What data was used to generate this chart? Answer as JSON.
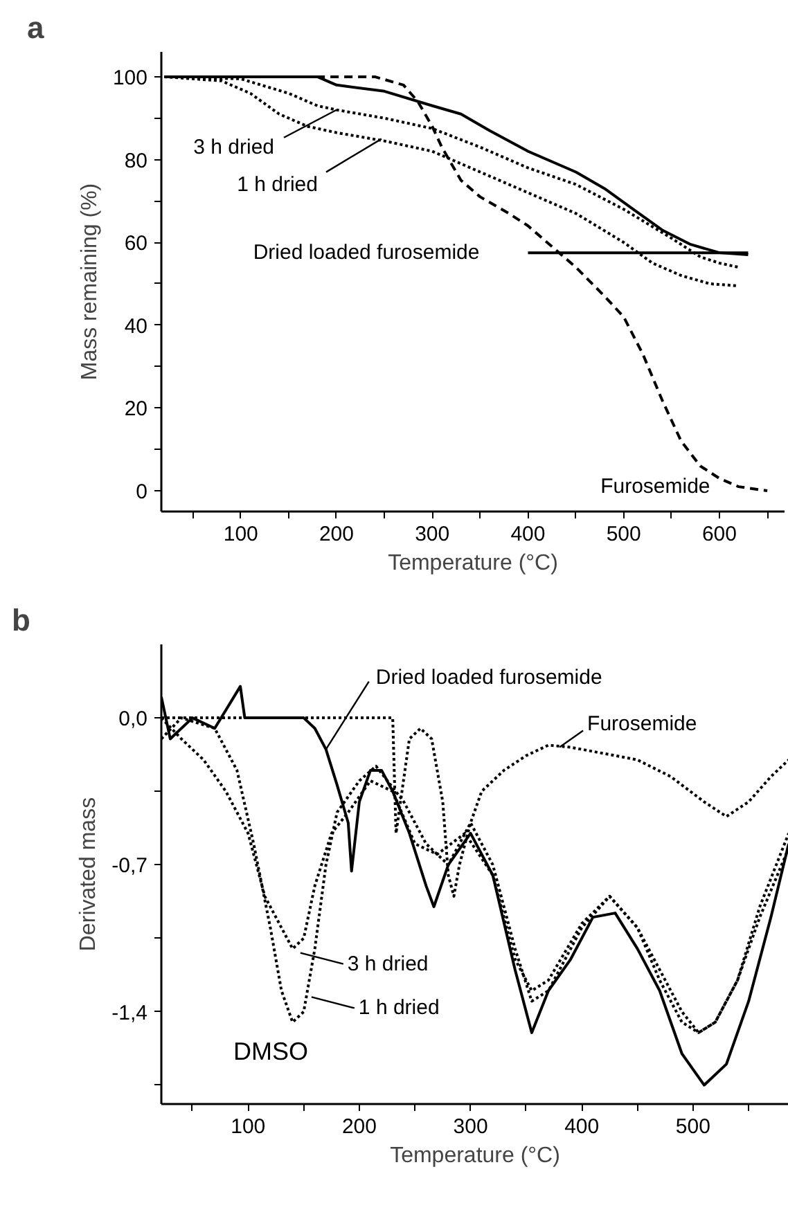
{
  "chart_data": [
    {
      "type": "line",
      "title": "a",
      "xlabel": "Temperature (°C)",
      "ylabel": "Mass remaining (%)",
      "xlim": [
        17,
        668
      ],
      "ylim": [
        -5,
        106
      ],
      "xticks": [
        {
          "value": 50,
          "label": null
        },
        100,
        {
          "value": 150,
          "label": null
        },
        200,
        {
          "value": 250,
          "label": null
        },
        300,
        {
          "value": 350,
          "label": null
        },
        400,
        {
          "value": 450,
          "label": null
        },
        500,
        {
          "value": 550,
          "label": null
        },
        600,
        {
          "value": 650,
          "label": null
        }
      ],
      "yticks": [
        0,
        {
          "value": 10,
          "label": null
        },
        20,
        {
          "value": 30,
          "label": null
        },
        40,
        {
          "value": 50,
          "label": null
        },
        60,
        {
          "value": 70,
          "label": null
        },
        80,
        {
          "value": 90,
          "label": null
        },
        100
      ],
      "grid": false,
      "series": [
        {
          "color": "#000000",
          "line_style": "solid",
          "x": [
            20,
            180,
            200,
            250,
            300,
            330,
            360,
            400,
            450,
            480,
            510,
            540,
            570,
            600,
            630
          ],
          "values": [
            100,
            100,
            98,
            96.5,
            93,
            91,
            87,
            82,
            77,
            73,
            68,
            63,
            59.5,
            57.5,
            57
          ]
        },
        {
          "color": "#000000",
          "line_style": "dotted",
          "x": [
            20,
            100,
            150,
            180,
            200,
            250,
            300,
            350,
            400,
            450,
            500,
            550,
            580,
            600,
            620
          ],
          "values": [
            100,
            99.5,
            96,
            93,
            92,
            90,
            87.5,
            83,
            78,
            74,
            68,
            61,
            56.5,
            55,
            54
          ]
        },
        {
          "color": "#000000",
          "line_style": "dotted",
          "x": [
            20,
            80,
            110,
            140,
            170,
            200,
            250,
            300,
            350,
            400,
            450,
            500,
            530,
            560,
            590,
            620
          ],
          "values": [
            100,
            99,
            96,
            91,
            88,
            86.5,
            84.5,
            82,
            77,
            72,
            67,
            60,
            55,
            52,
            50,
            49.5
          ]
        },
        {
          "color": "#000000",
          "line_style": "dashed",
          "x": [
            20,
            240,
            270,
            285,
            300,
            310,
            330,
            350,
            380,
            400,
            420,
            450,
            480,
            500,
            520,
            540,
            560,
            580,
            600,
            620,
            650
          ],
          "values": [
            100,
            100,
            98,
            94,
            88,
            83,
            75,
            71,
            67,
            64,
            60,
            54,
            47,
            42,
            33,
            22,
            12,
            6,
            3,
            1,
            0
          ]
        },
        {
          "color": "#000000",
          "line_style": "solid",
          "x": [
            400,
            630
          ],
          "values": [
            57.5,
            57.5
          ]
        }
      ],
      "annotations": [
        {
          "text": "3 h dried",
          "x": 200,
          "y": 92
        },
        {
          "text": "1 h dried",
          "x": 247,
          "y": 85
        },
        {
          "text": "Dried loaded furosemide",
          "x": 400,
          "y": 57.5
        },
        {
          "text": "Furosemide",
          "x": 625,
          "y": 1
        }
      ]
    },
    {
      "type": "line",
      "title": "b",
      "xlabel": "Temperature (°C)",
      "ylabel": "Derivated mass",
      "xlim": [
        22,
        586
      ],
      "ylim": [
        -1.84,
        0.35
      ],
      "xticks": [
        {
          "value": 50,
          "label": null
        },
        100,
        {
          "value": 150,
          "label": null
        },
        200,
        {
          "value": 250,
          "label": null
        },
        300,
        {
          "value": 350,
          "label": null
        },
        400,
        {
          "value": 450,
          "label": null
        },
        500,
        {
          "value": 550,
          "label": null
        }
      ],
      "yticks": [
        {
          "value": -1.75,
          "label": null
        },
        {
          "value": -1.4,
          "label": "-1,4"
        },
        {
          "value": -1.05,
          "label": null
        },
        {
          "value": -0.7,
          "label": "-0,7"
        },
        {
          "value": -0.35,
          "label": null
        },
        {
          "value": 0,
          "label": "0,0"
        }
      ],
      "grid": false,
      "series": [
        {
          "color": "#000000",
          "line_style": "solid",
          "x": [
            22,
            30,
            50,
            70,
            93,
            97,
            150,
            160,
            170,
            180,
            190,
            193,
            200,
            210,
            220,
            230,
            245,
            260,
            267,
            280,
            300,
            320,
            340,
            355,
            370,
            390,
            410,
            430,
            450,
            470,
            490,
            510,
            530,
            550,
            570,
            586
          ],
          "values": [
            0.1,
            -0.1,
            0,
            -0.05,
            0.15,
            0,
            0,
            -0.05,
            -0.15,
            -0.32,
            -0.5,
            -0.73,
            -0.4,
            -0.25,
            -0.25,
            -0.35,
            -0.55,
            -0.8,
            -0.9,
            -0.7,
            -0.55,
            -0.75,
            -1.2,
            -1.5,
            -1.3,
            -1.15,
            -0.95,
            -0.93,
            -1.1,
            -1.3,
            -1.6,
            -1.75,
            -1.65,
            -1.35,
            -0.95,
            -0.6
          ]
        },
        {
          "color": "#000000",
          "line_style": "dotted",
          "x": [
            22,
            40,
            60,
            80,
            100,
            115,
            130,
            140,
            150,
            160,
            175,
            190,
            210,
            230,
            250,
            270,
            295,
            320,
            340,
            355,
            370,
            400,
            425,
            450,
            470,
            490,
            505,
            520,
            540,
            560,
            586
          ],
          "values": [
            0,
            -0.1,
            -0.2,
            -0.35,
            -0.55,
            -0.85,
            -1.0,
            -1.1,
            -1.05,
            -0.8,
            -0.55,
            -0.45,
            -0.3,
            -0.35,
            -0.6,
            -0.65,
            -0.55,
            -0.75,
            -1.15,
            -1.3,
            -1.25,
            -0.98,
            -0.85,
            -1.0,
            -1.2,
            -1.4,
            -1.5,
            -1.45,
            -1.25,
            -0.95,
            -0.62
          ]
        },
        {
          "color": "#000000",
          "line_style": "dotted",
          "x": [
            22,
            40,
            70,
            90,
            105,
            120,
            130,
            140,
            150,
            160,
            170,
            180,
            200,
            215,
            240,
            260,
            280,
            300,
            320,
            340,
            355,
            370,
            400,
            425,
            450,
            470,
            490,
            505,
            520,
            540,
            560,
            586
          ],
          "values": [
            -0.1,
            0,
            -0.05,
            -0.25,
            -0.6,
            -1.0,
            -1.3,
            -1.45,
            -1.4,
            -1.1,
            -0.7,
            -0.45,
            -0.3,
            -0.23,
            -0.4,
            -0.6,
            -0.7,
            -0.5,
            -0.7,
            -1.1,
            -1.35,
            -1.3,
            -1.0,
            -0.85,
            -1.0,
            -1.25,
            -1.45,
            -1.5,
            -1.45,
            -1.25,
            -0.9,
            -0.55
          ]
        },
        {
          "color": "#000000",
          "line_style": "dotted",
          "x": [
            22,
            230,
            233,
            245,
            255,
            265,
            275,
            280,
            285,
            290,
            300,
            310,
            330,
            350,
            370,
            390,
            420,
            450,
            480,
            510,
            530,
            550,
            570,
            586
          ],
          "values": [
            0,
            0,
            -0.55,
            -0.1,
            -0.05,
            -0.1,
            -0.4,
            -0.75,
            -0.85,
            -0.7,
            -0.5,
            -0.35,
            -0.25,
            -0.18,
            -0.13,
            -0.14,
            -0.17,
            -0.2,
            -0.28,
            -0.4,
            -0.47,
            -0.4,
            -0.28,
            -0.2
          ]
        }
      ],
      "annotations": [
        {
          "text": "Dried loaded furosemide",
          "x": 170,
          "y": -0.15
        },
        {
          "text": "Furosemide",
          "x": 380,
          "y": -0.14
        },
        {
          "text": "3 h dried",
          "x": 147,
          "y": -1.12
        },
        {
          "text": "1 h dried",
          "x": 157,
          "y": -1.33
        },
        "DMSO"
      ]
    }
  ]
}
